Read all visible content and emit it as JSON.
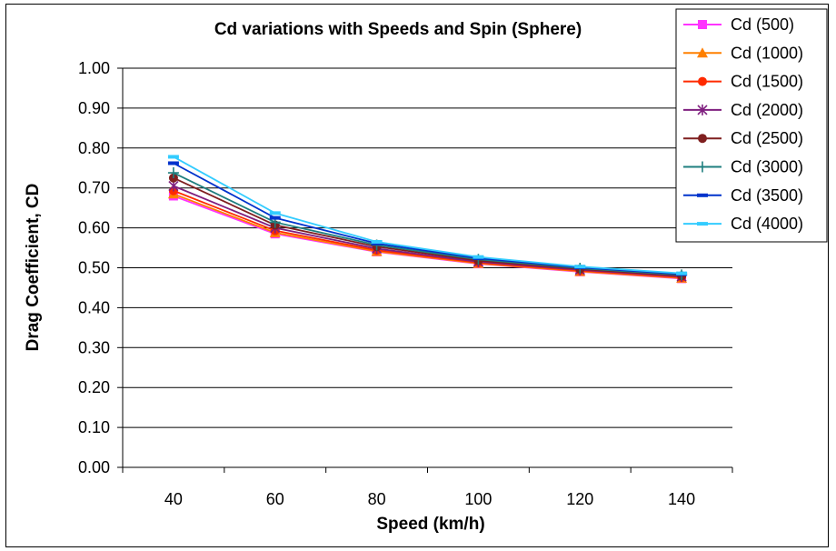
{
  "chart_data": {
    "type": "line",
    "title": "Cd variations with Speeds and Spin (Sphere)",
    "xlabel": "Speed (km/h)",
    "ylabel": "Drag Coefficient, CD",
    "x": [
      40,
      60,
      80,
      100,
      120,
      140
    ],
    "x_tick_labels": [
      "40",
      "60",
      "80",
      "100",
      "120",
      "140"
    ],
    "y_tick_labels": [
      "0.00",
      "0.10",
      "0.20",
      "0.30",
      "0.40",
      "0.50",
      "0.60",
      "0.70",
      "0.80",
      "0.90",
      "1.00"
    ],
    "ylim": [
      0,
      1
    ],
    "grid": "horizontal",
    "legend_position": "top-right",
    "series": [
      {
        "name": "Cd (500)",
        "color": "#FF33FF",
        "marker": "square",
        "values": [
          0.68,
          0.585,
          0.54,
          0.51,
          0.49,
          0.473
        ]
      },
      {
        "name": "Cd (1000)",
        "color": "#FF8000",
        "marker": "triangle",
        "values": [
          0.685,
          0.588,
          0.541,
          0.511,
          0.491,
          0.474
        ]
      },
      {
        "name": "Cd (1500)",
        "color": "#FF2A00",
        "marker": "circle",
        "values": [
          0.693,
          0.593,
          0.544,
          0.513,
          0.493,
          0.476
        ]
      },
      {
        "name": "Cd (2000)",
        "color": "#7F1F7F",
        "marker": "asterisk",
        "values": [
          0.705,
          0.6,
          0.548,
          0.515,
          0.495,
          0.478
        ]
      },
      {
        "name": "Cd (2500)",
        "color": "#7F1F1F",
        "marker": "circle",
        "values": [
          0.725,
          0.607,
          0.553,
          0.518,
          0.497,
          0.48
        ]
      },
      {
        "name": "Cd (3000)",
        "color": "#1F7F7F",
        "marker": "plus",
        "values": [
          0.738,
          0.614,
          0.557,
          0.521,
          0.499,
          0.482
        ]
      },
      {
        "name": "Cd (3500)",
        "color": "#0033CC",
        "marker": "dash",
        "values": [
          0.762,
          0.625,
          0.561,
          0.524,
          0.501,
          0.484
        ]
      },
      {
        "name": "Cd (4000)",
        "color": "#33CCFF",
        "marker": "dash",
        "values": [
          0.778,
          0.637,
          0.565,
          0.527,
          0.503,
          0.486
        ]
      }
    ]
  }
}
